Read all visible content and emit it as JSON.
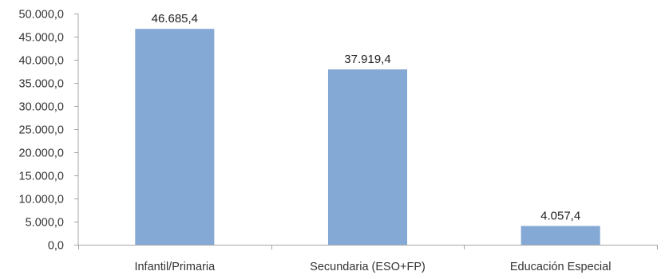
{
  "chart_data": {
    "type": "bar",
    "categories": [
      "Infantil/Primaria",
      "Secundaria (ESO+FP)",
      "Educación Especial"
    ],
    "values": [
      46685.4,
      37919.4,
      4057.4
    ],
    "value_labels": [
      "46.685,4",
      "37.919,4",
      "4.057,4"
    ],
    "title": "",
    "xlabel": "",
    "ylabel": "",
    "ylim": [
      0,
      50000
    ],
    "ytick_values": [
      0,
      5000,
      10000,
      15000,
      20000,
      25000,
      30000,
      35000,
      40000,
      45000,
      50000
    ],
    "ytick_labels": [
      "0,0",
      "5.000,0",
      "10.000,0",
      "15.000,0",
      "20.000,0",
      "25.000,0",
      "30.000,0",
      "35.000,0",
      "40.000,0",
      "45.000,0",
      "50.000,0"
    ],
    "grid": false,
    "legend": "none",
    "colors": {
      "bar": "#85A9D5",
      "axis": "#A6A6A6",
      "text": "#333333"
    }
  }
}
